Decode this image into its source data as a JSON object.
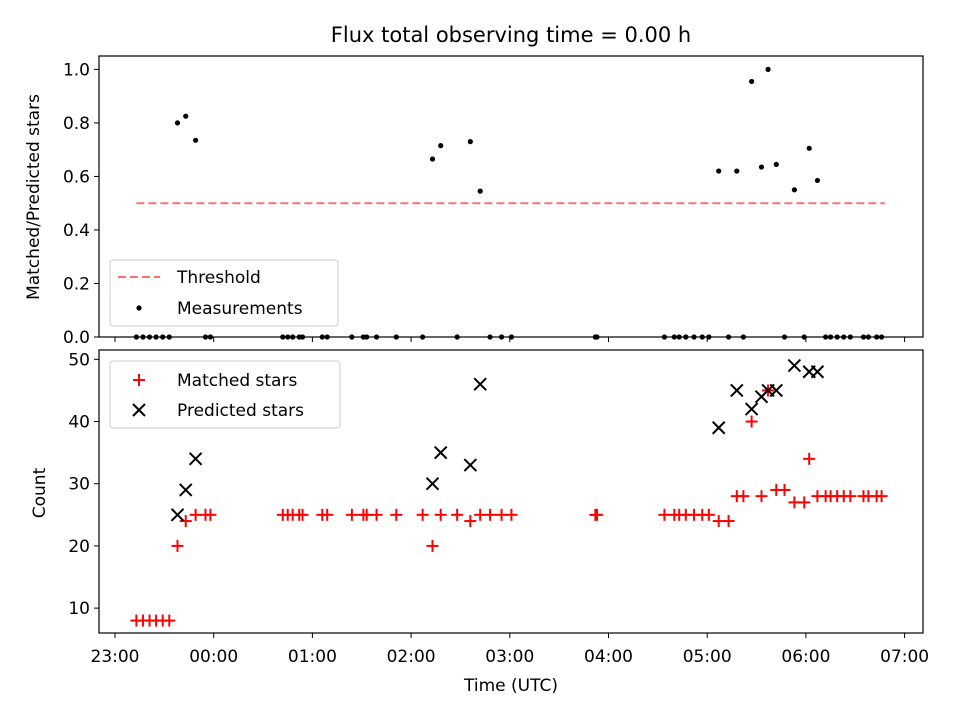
{
  "title": "Flux total observing time = 0.00 h",
  "xlabel": "Time (UTC)",
  "xticks": [
    "23:00",
    "00:00",
    "01:00",
    "02:00",
    "03:00",
    "04:00",
    "05:00",
    "06:00",
    "07:00"
  ],
  "colors": {
    "threshold": "#ff7070",
    "matched": "#ff0000",
    "predicted": "#000000",
    "measurements": "#000000"
  },
  "chart_data": [
    {
      "type": "scatter",
      "panel": "top",
      "ylabel": "Matched/Predicted stars",
      "ylim": [
        0,
        1.05
      ],
      "yticks": [
        "0.0",
        "0.2",
        "0.4",
        "0.6",
        "0.8",
        "1.0"
      ],
      "legend": {
        "placement": "lower-left",
        "entries": [
          "Threshold",
          "Measurements"
        ]
      },
      "threshold": {
        "name": "Threshold",
        "y": 0.5,
        "x_start": "23:13",
        "x_end": "06:48"
      },
      "series": [
        {
          "name": "Measurements",
          "points": [
            [
              "23:13",
              0
            ],
            [
              "23:17",
              0
            ],
            [
              "23:21",
              0
            ],
            [
              "23:25",
              0
            ],
            [
              "23:29",
              0
            ],
            [
              "23:33",
              0
            ],
            [
              "23:38",
              0.8
            ],
            [
              "23:43",
              0.825
            ],
            [
              "23:49",
              0.735
            ],
            [
              "23:55",
              0
            ],
            [
              "23:58",
              0
            ],
            [
              "00:42",
              0
            ],
            [
              "00:45",
              0
            ],
            [
              "00:48",
              0
            ],
            [
              "00:52",
              0
            ],
            [
              "00:54",
              0
            ],
            [
              "01:06",
              0
            ],
            [
              "01:09",
              0
            ],
            [
              "01:24",
              0
            ],
            [
              "01:31",
              0
            ],
            [
              "01:33",
              0
            ],
            [
              "01:39",
              0
            ],
            [
              "01:51",
              0
            ],
            [
              "02:07",
              0
            ],
            [
              "02:13",
              0.665
            ],
            [
              "02:18",
              0.715
            ],
            [
              "02:28",
              0
            ],
            [
              "02:36",
              0.73
            ],
            [
              "02:42",
              0.545
            ],
            [
              "02:48",
              0
            ],
            [
              "02:55",
              0
            ],
            [
              "03:01",
              0
            ],
            [
              "03:52",
              0
            ],
            [
              "03:53",
              0
            ],
            [
              "04:34",
              0
            ],
            [
              "04:40",
              0
            ],
            [
              "04:43",
              0
            ],
            [
              "04:47",
              0
            ],
            [
              "04:52",
              0
            ],
            [
              "04:57",
              0
            ],
            [
              "05:01",
              0
            ],
            [
              "05:07",
              0.62
            ],
            [
              "05:13",
              0
            ],
            [
              "05:18",
              0.62
            ],
            [
              "05:22",
              0
            ],
            [
              "05:27",
              0.955
            ],
            [
              "05:33",
              0.635
            ],
            [
              "05:37",
              1.0
            ],
            [
              "05:42",
              0.645
            ],
            [
              "05:47",
              0
            ],
            [
              "05:53",
              0.55
            ],
            [
              "05:59",
              0
            ],
            [
              "06:02",
              0.705
            ],
            [
              "06:07",
              0.585
            ],
            [
              "06:12",
              0
            ],
            [
              "06:15",
              0
            ],
            [
              "06:19",
              0
            ],
            [
              "06:23",
              0
            ],
            [
              "06:27",
              0
            ],
            [
              "06:35",
              0
            ],
            [
              "06:38",
              0
            ],
            [
              "06:43",
              0
            ],
            [
              "06:46",
              0
            ]
          ]
        }
      ]
    },
    {
      "type": "scatter",
      "panel": "bottom",
      "ylabel": "Count",
      "ylim": [
        6,
        51.5
      ],
      "yticks": [
        "10",
        "20",
        "30",
        "40",
        "50"
      ],
      "legend": {
        "placement": "upper-left",
        "entries": [
          "Matched stars",
          "Predicted stars"
        ]
      },
      "series": [
        {
          "name": "Matched stars",
          "marker": "plus",
          "points": [
            [
              "23:13",
              8
            ],
            [
              "23:17",
              8
            ],
            [
              "23:21",
              8
            ],
            [
              "23:25",
              8
            ],
            [
              "23:29",
              8
            ],
            [
              "23:33",
              8
            ],
            [
              "23:38",
              20
            ],
            [
              "23:43",
              24
            ],
            [
              "23:49",
              25
            ],
            [
              "23:55",
              25
            ],
            [
              "23:58",
              25
            ],
            [
              "00:42",
              25
            ],
            [
              "00:45",
              25
            ],
            [
              "00:48",
              25
            ],
            [
              "00:52",
              25
            ],
            [
              "00:54",
              25
            ],
            [
              "01:06",
              25
            ],
            [
              "01:09",
              25
            ],
            [
              "01:24",
              25
            ],
            [
              "01:31",
              25
            ],
            [
              "01:33",
              25
            ],
            [
              "01:39",
              25
            ],
            [
              "01:51",
              25
            ],
            [
              "02:07",
              25
            ],
            [
              "02:13",
              20
            ],
            [
              "02:18",
              25
            ],
            [
              "02:28",
              25
            ],
            [
              "02:36",
              24
            ],
            [
              "02:42",
              25
            ],
            [
              "02:48",
              25
            ],
            [
              "02:55",
              25
            ],
            [
              "03:01",
              25
            ],
            [
              "03:52",
              25
            ],
            [
              "03:53",
              25
            ],
            [
              "04:34",
              25
            ],
            [
              "04:40",
              25
            ],
            [
              "04:43",
              25
            ],
            [
              "04:47",
              25
            ],
            [
              "04:52",
              25
            ],
            [
              "04:57",
              25
            ],
            [
              "05:01",
              25
            ],
            [
              "05:07",
              24
            ],
            [
              "05:13",
              24
            ],
            [
              "05:18",
              28
            ],
            [
              "05:22",
              28
            ],
            [
              "05:27",
              40
            ],
            [
              "05:33",
              28
            ],
            [
              "05:37",
              45
            ],
            [
              "05:42",
              29
            ],
            [
              "05:47",
              29
            ],
            [
              "05:53",
              27
            ],
            [
              "05:59",
              27
            ],
            [
              "06:02",
              34
            ],
            [
              "06:07",
              28
            ],
            [
              "06:12",
              28
            ],
            [
              "06:15",
              28
            ],
            [
              "06:19",
              28
            ],
            [
              "06:23",
              28
            ],
            [
              "06:27",
              28
            ],
            [
              "06:35",
              28
            ],
            [
              "06:38",
              28
            ],
            [
              "06:43",
              28
            ],
            [
              "06:46",
              28
            ]
          ]
        },
        {
          "name": "Predicted stars",
          "marker": "x",
          "points": [
            [
              "23:38",
              25
            ],
            [
              "23:43",
              29
            ],
            [
              "23:49",
              34
            ],
            [
              "02:13",
              30
            ],
            [
              "02:18",
              35
            ],
            [
              "02:36",
              33
            ],
            [
              "02:42",
              46
            ],
            [
              "05:07",
              39
            ],
            [
              "05:18",
              45
            ],
            [
              "05:27",
              42
            ],
            [
              "05:33",
              44
            ],
            [
              "05:37",
              45
            ],
            [
              "05:42",
              45
            ],
            [
              "05:53",
              49
            ],
            [
              "06:02",
              48
            ],
            [
              "06:07",
              48
            ]
          ]
        }
      ]
    }
  ]
}
